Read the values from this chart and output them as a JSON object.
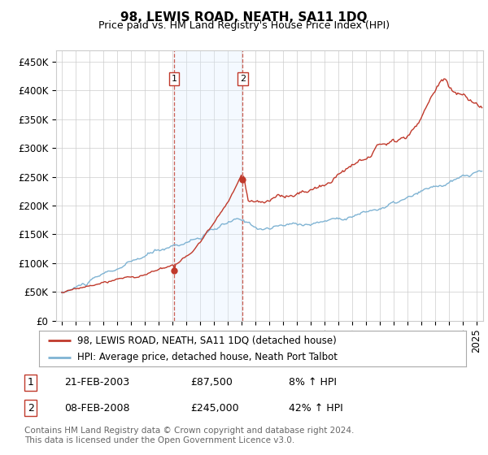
{
  "title": "98, LEWIS ROAD, NEATH, SA11 1DQ",
  "subtitle": "Price paid vs. HM Land Registry's House Price Index (HPI)",
  "ylabel_ticks": [
    "£0",
    "£50K",
    "£100K",
    "£150K",
    "£200K",
    "£250K",
    "£300K",
    "£350K",
    "£400K",
    "£450K"
  ],
  "ylabel_values": [
    0,
    50000,
    100000,
    150000,
    200000,
    250000,
    300000,
    350000,
    400000,
    450000
  ],
  "ylim": [
    0,
    470000
  ],
  "xlim_start": 1994.6,
  "xlim_end": 2025.5,
  "sale1_x": 2003.13,
  "sale1_y": 87500,
  "sale2_x": 2008.1,
  "sale2_y": 245000,
  "sale1_label": "21-FEB-2003",
  "sale1_price": "£87,500",
  "sale1_hpi": "8% ↑ HPI",
  "sale2_label": "08-FEB-2008",
  "sale2_price": "£245,000",
  "sale2_hpi": "42% ↑ HPI",
  "legend_line1": "98, LEWIS ROAD, NEATH, SA11 1DQ (detached house)",
  "legend_line2": "HPI: Average price, detached house, Neath Port Talbot",
  "footer": "Contains HM Land Registry data © Crown copyright and database right 2024.\nThis data is licensed under the Open Government Licence v3.0.",
  "line_color_red": "#c0392b",
  "line_color_blue": "#7fb3d3",
  "shade_color": "#ddeeff",
  "background_color": "#ffffff",
  "grid_color": "#cccccc",
  "title_fontsize": 11,
  "subtitle_fontsize": 9,
  "tick_fontsize": 8.5
}
